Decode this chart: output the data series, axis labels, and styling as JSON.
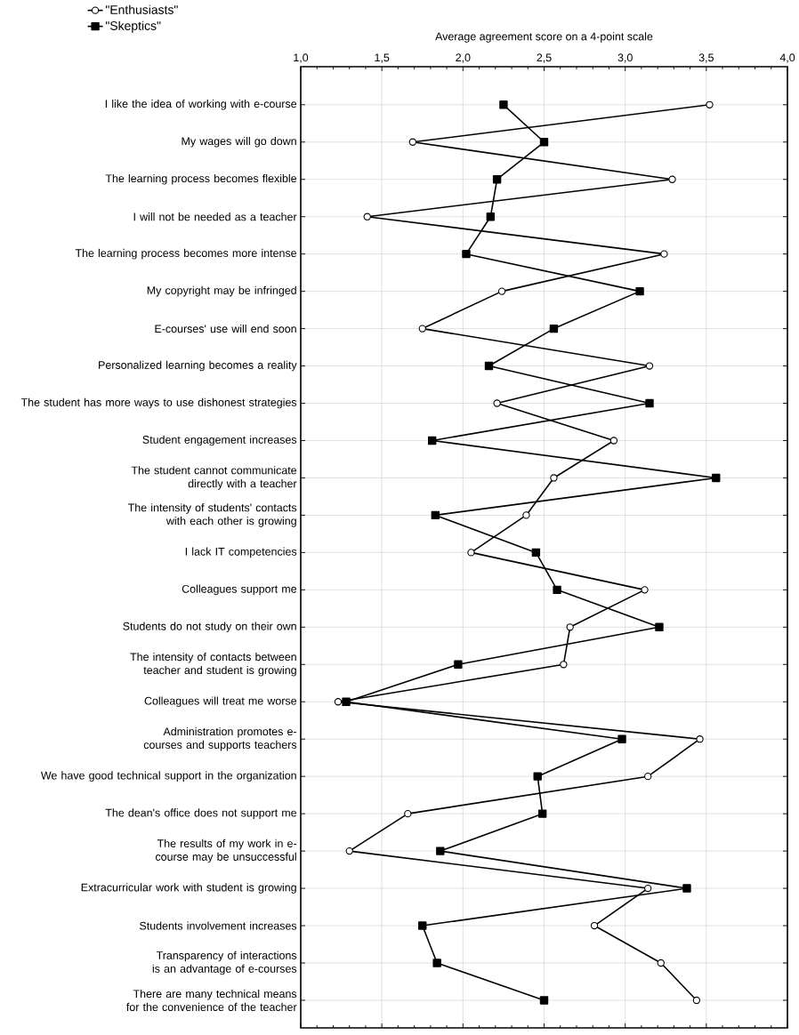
{
  "chart_data": {
    "type": "line",
    "orientation": "horizontal",
    "xlabel": "Average agreement score on a 4-point scale",
    "categories": [
      "I like the idea of working with e-course",
      "My wages will go down",
      "The learning process becomes flexible",
      "I will not be needed as a teacher",
      "The learning process becomes more intense",
      "My copyright may be infringed",
      "E-courses' use will end soon",
      "Personalized learning becomes a reality",
      "The student has more ways to use dishonest strategies",
      "Student engagement increases",
      "The student cannot communicate directly with a teacher",
      "The intensity of students' contacts with each other is growing",
      "I lack IT competencies",
      "Colleagues support me",
      "Students do not study on their own",
      "The intensity of contacts between teacher and student is growing",
      "Colleagues will treat me worse",
      "Administration promotes e-courses and supports teachers",
      "We have good technical support in the organization",
      "The dean's office does not support me",
      "The results of my work in e-course may be unsuccessful",
      "Extracurricular work with student is growing",
      "Students involvement increases",
      "Transparency of interactions is an advantage of e-courses",
      "There are many technical means for the convenience of the teacher"
    ],
    "series": [
      {
        "name": "\"Enthusiasts\"",
        "color": "#000000",
        "marker": "circle",
        "values": [
          3.52,
          1.69,
          3.29,
          1.41,
          3.24,
          2.24,
          1.75,
          3.15,
          2.21,
          2.93,
          2.56,
          2.39,
          2.05,
          3.12,
          2.66,
          2.62,
          1.23,
          3.46,
          3.14,
          1.66,
          1.3,
          3.14,
          2.81,
          3.22,
          3.44
        ]
      },
      {
        "name": "\"Skeptics\"",
        "color": "#000000",
        "marker": "square",
        "values": [
          2.25,
          2.5,
          2.21,
          2.17,
          2.02,
          3.09,
          2.56,
          2.16,
          3.15,
          1.81,
          3.56,
          1.83,
          2.45,
          2.58,
          3.21,
          1.97,
          1.28,
          2.98,
          2.46,
          2.49,
          1.86,
          3.38,
          1.75,
          1.84,
          2.5
        ]
      }
    ],
    "xlim": [
      1,
      4
    ],
    "xticks": [
      {
        "value": 1,
        "label": "1,0"
      },
      {
        "value": 1.5,
        "label": "1,5"
      },
      {
        "value": 2,
        "label": "2,0"
      },
      {
        "value": 2.5,
        "label": "2,5"
      },
      {
        "value": 3,
        "label": "3,0"
      },
      {
        "value": 3.5,
        "label": "3,5"
      },
      {
        "value": 4,
        "label": "4,0"
      }
    ],
    "grid": true,
    "legend": "top left",
    "line_style": "solid"
  }
}
